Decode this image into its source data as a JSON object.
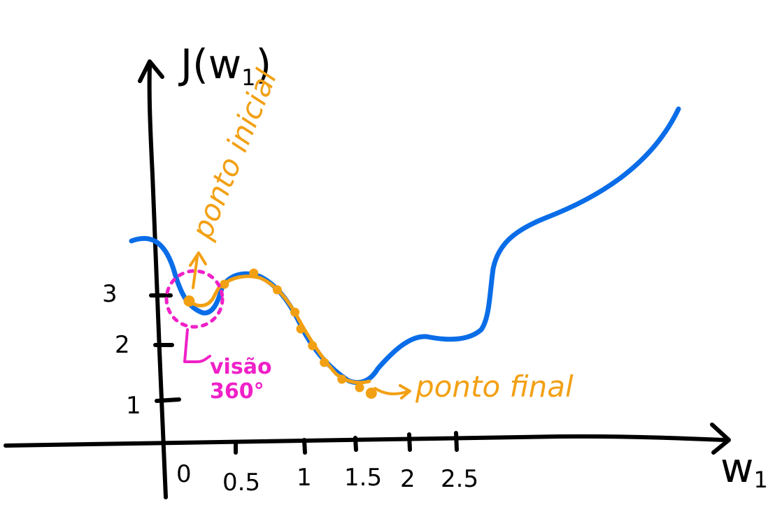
{
  "axes": {
    "y_label": "J(w",
    "y_label_sub": "1",
    "y_label_close": ")",
    "x_label": "w",
    "x_label_sub": "1",
    "y_ticks": [
      "1",
      "2",
      "3"
    ],
    "x_ticks": [
      "0",
      "0.5",
      "1",
      "1.5",
      "2",
      "2.5"
    ]
  },
  "annotations": {
    "start": "ponto inicial",
    "end": "ponto final",
    "view_line1": "visão",
    "view_line2": "360°"
  },
  "colors": {
    "curve": "#0a6de8",
    "descent": "#f2a013",
    "view": "#f020c8",
    "axis": "#000000"
  },
  "chart_data": {
    "type": "line",
    "series": [
      {
        "x": [
          -0.3,
          -0.05,
          0.1,
          0.2,
          0.35,
          0.6,
          0.8,
          1.0,
          1.2,
          1.4,
          1.6,
          1.8,
          2.0,
          2.2,
          2.5,
          3.0,
          3.5,
          4.0
        ],
        "y": [
          4.1,
          3.9,
          2.9,
          2.7,
          3.2,
          3.4,
          3.1,
          2.4,
          1.8,
          1.4,
          1.25,
          1.6,
          2.1,
          2.0,
          2.3,
          4.2,
          5.6,
          7.0
        ]
      }
    ],
    "descent_points": {
      "x": [
        0.05,
        0.35,
        0.6,
        0.8,
        0.95,
        1.0,
        1.1,
        1.2,
        1.35,
        1.5,
        1.6
      ],
      "y": [
        2.9,
        3.2,
        3.4,
        3.1,
        2.7,
        2.4,
        2.1,
        1.8,
        1.5,
        1.35,
        1.25
      ]
    },
    "xlabel": "w1",
    "ylabel": "J(w1)"
  }
}
